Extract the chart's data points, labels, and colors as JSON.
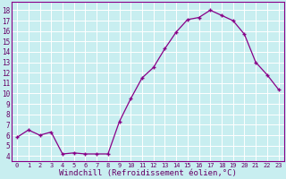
{
  "x": [
    0,
    1,
    2,
    3,
    4,
    5,
    6,
    7,
    8,
    9,
    10,
    11,
    12,
    13,
    14,
    15,
    16,
    17,
    18,
    19,
    20,
    21,
    22,
    23
  ],
  "y": [
    5.8,
    6.5,
    6.0,
    6.3,
    4.2,
    4.3,
    4.2,
    4.2,
    4.2,
    7.3,
    9.5,
    11.5,
    12.5,
    14.3,
    15.9,
    17.1,
    17.3,
    18.0,
    17.5,
    17.0,
    15.7,
    13.0,
    11.8,
    10.4
  ],
  "line_color": "#880088",
  "marker": "+",
  "marker_size": 3.5,
  "bg_color": "#c8eef0",
  "grid_color": "#ffffff",
  "xlabel": "Windchill (Refroidissement éolien,°C)",
  "ylabel_ticks": [
    4,
    5,
    6,
    7,
    8,
    9,
    10,
    11,
    12,
    13,
    14,
    15,
    16,
    17,
    18
  ],
  "ylim": [
    3.5,
    18.8
  ],
  "xlim": [
    -0.5,
    23.5
  ],
  "tick_label_color": "#660066",
  "axis_label_color": "#660066",
  "xlabel_fontsize": 6.5,
  "ytick_fontsize": 5.5,
  "xtick_fontsize": 5.0,
  "linewidth": 0.9,
  "marker_linewidth": 1.0
}
